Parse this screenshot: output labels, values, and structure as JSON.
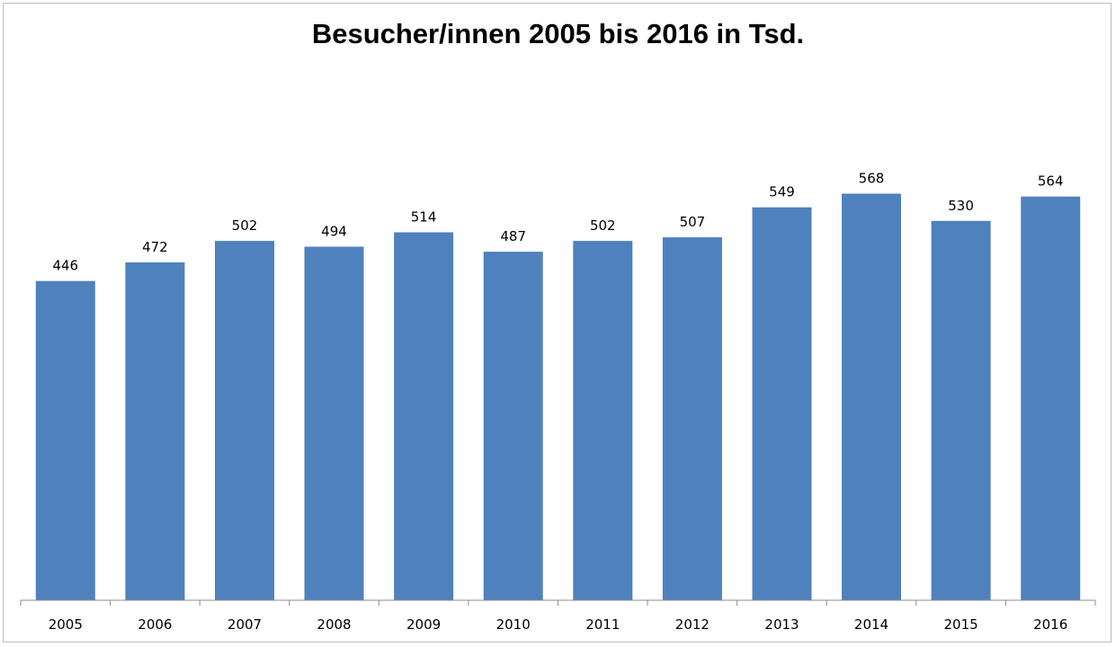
{
  "chart_data": {
    "type": "bar",
    "title": "Besucher/innen 2005 bis 2016 in Tsd.",
    "xlabel": "",
    "ylabel": "",
    "categories": [
      "2005",
      "2006",
      "2007",
      "2008",
      "2009",
      "2010",
      "2011",
      "2012",
      "2013",
      "2014",
      "2015",
      "2016"
    ],
    "values": [
      446,
      472,
      502,
      494,
      514,
      487,
      502,
      507,
      549,
      568,
      530,
      564
    ],
    "ylim": [
      0,
      580
    ],
    "bar_color": "#4f81bd",
    "grid": false,
    "legend": "none",
    "data_labels": true
  }
}
